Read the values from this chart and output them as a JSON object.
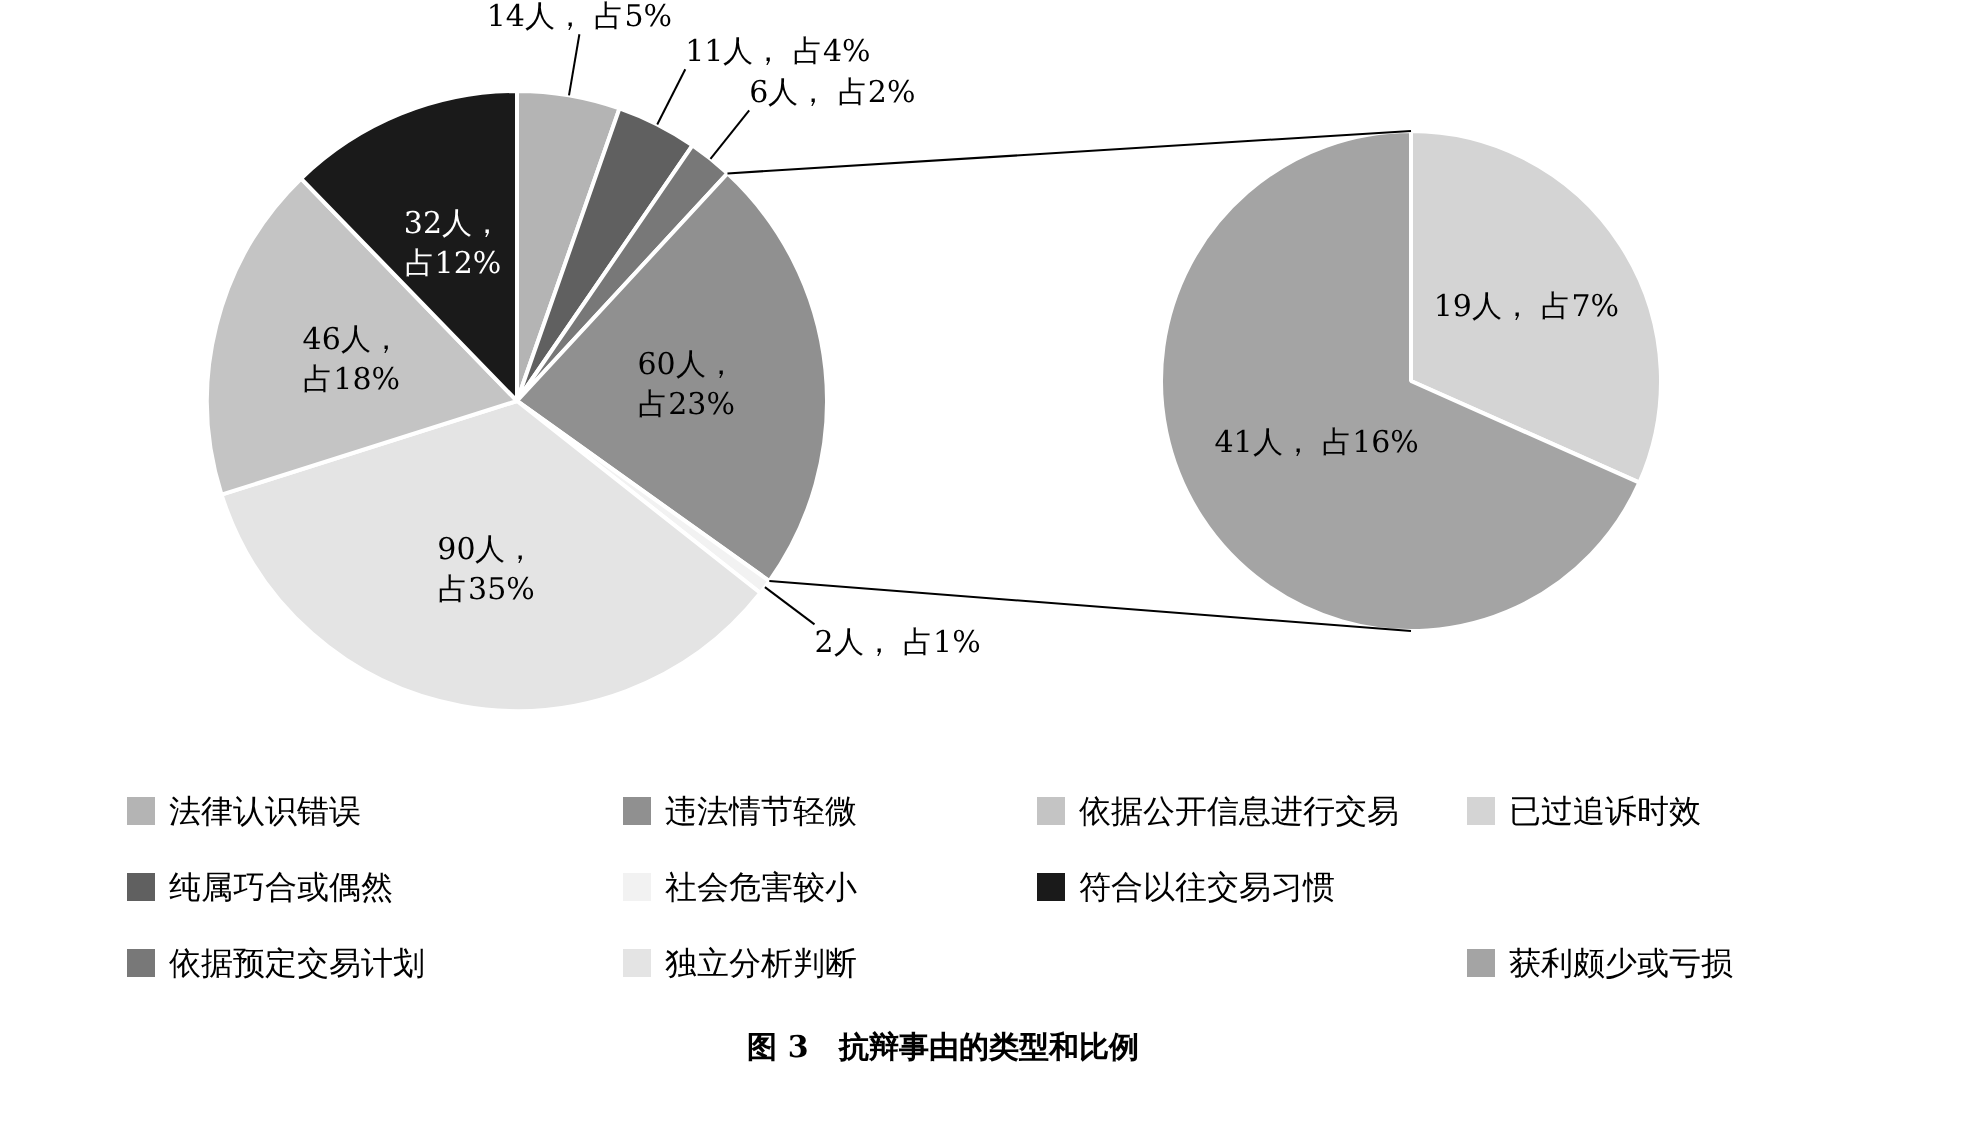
{
  "chart_data": [
    {
      "type": "pie",
      "title": "图 3　抗辩事由的类型和比例",
      "legend": "bottom",
      "categories": [
        "法律认识错误",
        "纯属巧合或偶然",
        "依据预定交易计划",
        "违法情节轻微",
        "社会危害较小",
        "独立分析判断",
        "依据公开信息进行交易",
        "符合以往交易习惯"
      ],
      "values": [
        14,
        11,
        6,
        60,
        2,
        90,
        46,
        32
      ],
      "colors": [
        "#b4b4b4",
        "#606060",
        "#787878",
        "#909090",
        "#f2f2f2",
        "#e4e4e4",
        "#c4c4c4",
        "#1a1a1a"
      ],
      "value_labels": [
        "14人， 占5%",
        "11人， 占4%",
        "6人， 占2%",
        "60人，占23%",
        "2人， 占1%",
        "90人，占35%",
        "46人，占18%",
        "32人，占12%"
      ]
    },
    {
      "type": "pie",
      "legend": "bottom",
      "categories": [
        "已过追诉时效",
        "获利颇少或亏损"
      ],
      "values": [
        19,
        41
      ],
      "colors": [
        "#d4d4d4",
        "#a4a4a4"
      ],
      "value_labels": [
        "19人， 占7%",
        "41人， 占16%"
      ]
    }
  ]
}
